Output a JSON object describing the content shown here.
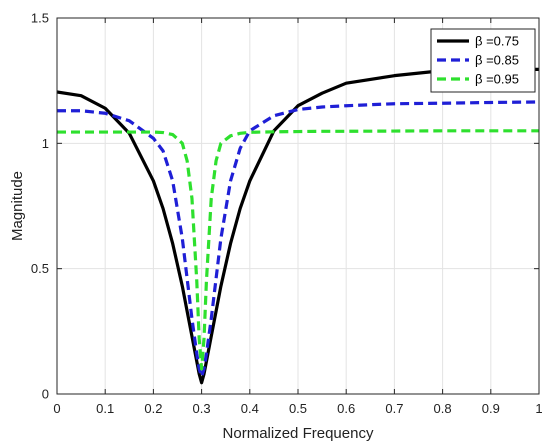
{
  "chart_data": {
    "type": "line",
    "xlabel": "Normalized Frequency",
    "ylabel": "Magnitude",
    "xlim": [
      0,
      1
    ],
    "ylim": [
      0,
      1.5
    ],
    "x_ticks": [
      "0",
      "0.1",
      "0.2",
      "0.3",
      "0.4",
      "0.5",
      "0.6",
      "0.7",
      "0.8",
      "0.9",
      "1"
    ],
    "y_ticks": [
      "0",
      "0.5",
      "1",
      "1.5"
    ],
    "grid": true,
    "legend_position": "top-right",
    "series": [
      {
        "name": "β =0.75",
        "color": "#000000",
        "style": "solid",
        "x": [
          0,
          0.05,
          0.1,
          0.15,
          0.2,
          0.22,
          0.24,
          0.26,
          0.27,
          0.28,
          0.29,
          0.295,
          0.3,
          0.305,
          0.31,
          0.32,
          0.33,
          0.34,
          0.36,
          0.38,
          0.4,
          0.45,
          0.5,
          0.55,
          0.6,
          0.7,
          0.8,
          0.9,
          1
        ],
        "y": [
          1.205,
          1.19,
          1.14,
          1.04,
          0.85,
          0.74,
          0.6,
          0.43,
          0.33,
          0.23,
          0.13,
          0.08,
          0.045,
          0.08,
          0.13,
          0.23,
          0.33,
          0.43,
          0.6,
          0.74,
          0.85,
          1.05,
          1.15,
          1.2,
          1.24,
          1.27,
          1.29,
          1.295,
          1.295
        ]
      },
      {
        "name": "β =0.85",
        "color": "#1f1fd6",
        "style": "dashed",
        "x": [
          0,
          0.05,
          0.1,
          0.15,
          0.2,
          0.22,
          0.24,
          0.26,
          0.27,
          0.28,
          0.29,
          0.295,
          0.3,
          0.305,
          0.31,
          0.32,
          0.33,
          0.34,
          0.36,
          0.38,
          0.4,
          0.45,
          0.5,
          0.55,
          0.6,
          0.7,
          0.8,
          0.9,
          1
        ],
        "y": [
          1.13,
          1.13,
          1.12,
          1.09,
          1.02,
          0.97,
          0.85,
          0.62,
          0.46,
          0.3,
          0.16,
          0.1,
          0.07,
          0.1,
          0.16,
          0.3,
          0.46,
          0.62,
          0.85,
          0.98,
          1.05,
          1.11,
          1.135,
          1.145,
          1.15,
          1.158,
          1.16,
          1.163,
          1.165
        ]
      },
      {
        "name": "β =0.95",
        "color": "#2ee02e",
        "style": "dashed",
        "x": [
          0,
          0.05,
          0.1,
          0.15,
          0.2,
          0.22,
          0.24,
          0.26,
          0.27,
          0.28,
          0.29,
          0.295,
          0.3,
          0.305,
          0.31,
          0.32,
          0.33,
          0.34,
          0.36,
          0.38,
          0.4,
          0.45,
          0.5,
          0.55,
          0.6,
          0.7,
          0.8,
          0.9,
          1
        ],
        "y": [
          1.045,
          1.045,
          1.045,
          1.045,
          1.045,
          1.043,
          1.035,
          1.0,
          0.93,
          0.78,
          0.45,
          0.22,
          0.1,
          0.22,
          0.45,
          0.78,
          0.93,
          1.0,
          1.03,
          1.04,
          1.044,
          1.046,
          1.047,
          1.048,
          1.048,
          1.049,
          1.05,
          1.05,
          1.05
        ]
      }
    ]
  }
}
